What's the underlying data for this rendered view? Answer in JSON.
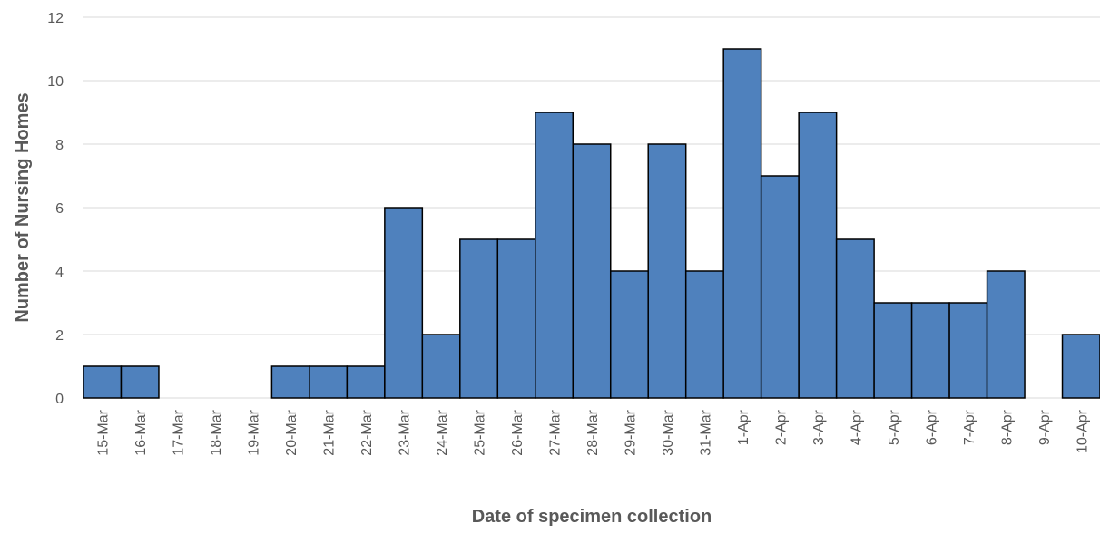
{
  "chart_data": {
    "type": "bar",
    "categories": [
      "15-Mar",
      "16-Mar",
      "17-Mar",
      "18-Mar",
      "19-Mar",
      "20-Mar",
      "21-Mar",
      "22-Mar",
      "23-Mar",
      "24-Mar",
      "25-Mar",
      "26-Mar",
      "27-Mar",
      "28-Mar",
      "29-Mar",
      "30-Mar",
      "31-Mar",
      "1-Apr",
      "2-Apr",
      "3-Apr",
      "4-Apr",
      "5-Apr",
      "6-Apr",
      "7-Apr",
      "8-Apr",
      "9-Apr",
      "10-Apr"
    ],
    "values": [
      1,
      1,
      0,
      0,
      0,
      1,
      1,
      1,
      6,
      2,
      5,
      5,
      9,
      8,
      4,
      8,
      4,
      11,
      7,
      9,
      5,
      3,
      3,
      3,
      4,
      0,
      2
    ],
    "title": "",
    "xlabel": "Date of specimen collection",
    "ylabel": "Number of Nursing Homes",
    "ylim": [
      0,
      12
    ],
    "yticks": [
      0,
      2,
      4,
      6,
      8,
      10,
      12
    ],
    "grid": true,
    "legend": "none",
    "bar_color": "#4f81bd",
    "bar_edge_color": "#000000"
  }
}
